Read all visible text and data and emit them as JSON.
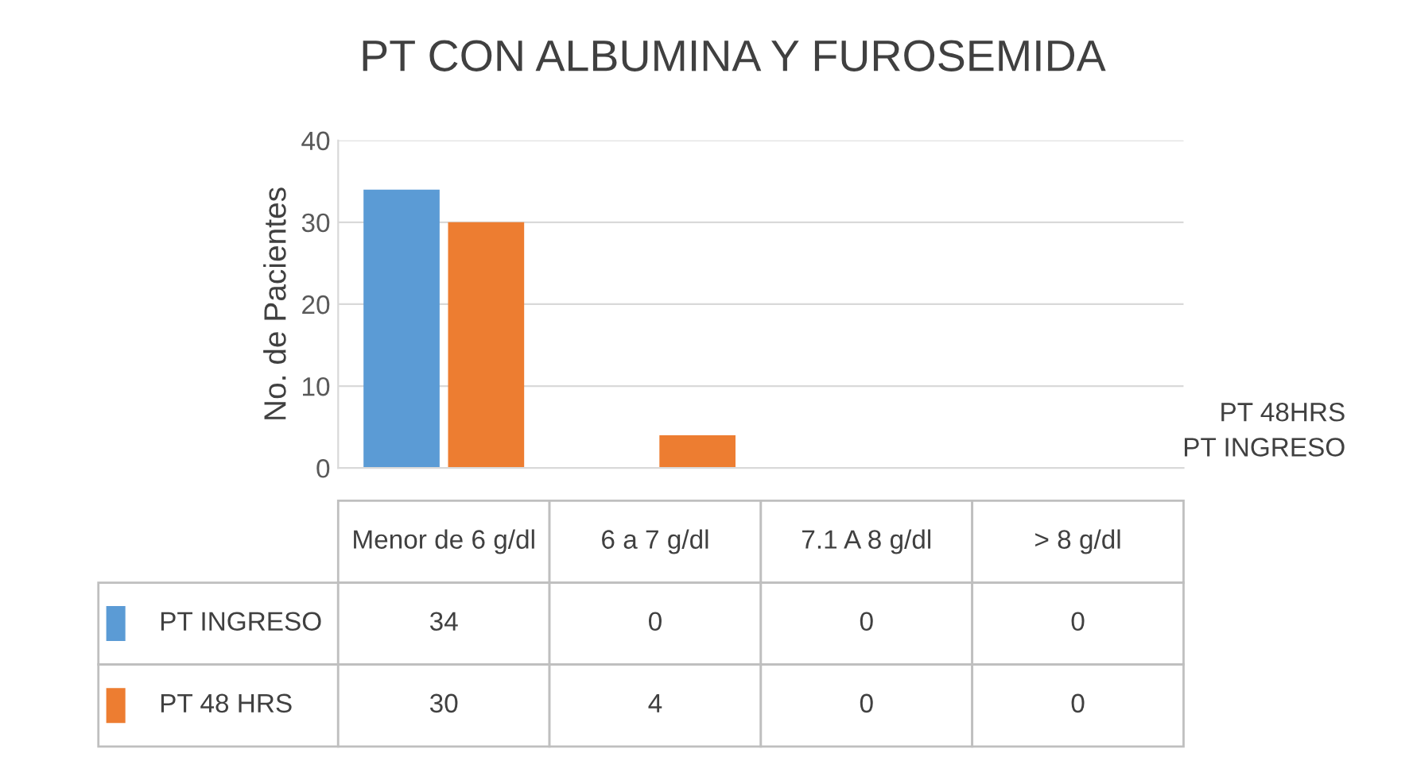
{
  "chart_data": {
    "type": "bar",
    "title": "PT CON ALBUMINA Y FUROSEMIDA",
    "ylabel": "No. de Pacientes",
    "categories": [
      "Menor de 6 g/dl",
      "6 a 7 g/dl",
      "7.1 A 8 g/dl",
      "> 8 g/dl"
    ],
    "series": [
      {
        "name": "PT INGRESO",
        "color": "#5b9bd5",
        "values": [
          34,
          0,
          0,
          0
        ]
      },
      {
        "name": "PT 48 HRS",
        "color": "#ed7d31",
        "values": [
          30,
          4,
          0,
          0
        ]
      }
    ],
    "ylim": [
      0,
      40
    ],
    "yticks": [
      0,
      10,
      20,
      30,
      40
    ],
    "grid": "y",
    "data_labels": true,
    "legend": "bottom left",
    "annotations": [
      "PT 48HRS",
      "PT INGRESO"
    ]
  }
}
